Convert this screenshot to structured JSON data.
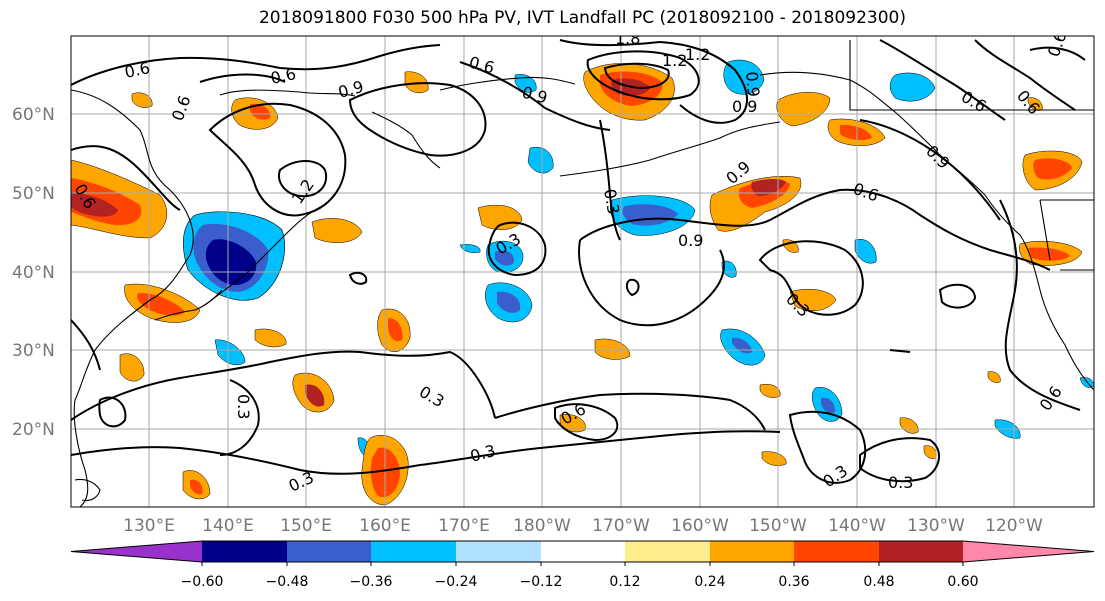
{
  "title": "2018091800 F030 500 hPa PV, IVT Landfall PC (2018092100 - 2018092300)",
  "lat_labels": [
    "60°N",
    "50°N",
    "40°N",
    "30°N",
    "20°N"
  ],
  "lon_labels": [
    "130°E",
    "140°E",
    "150°E",
    "160°E",
    "170°E",
    "180°W",
    "170°W",
    "160°W",
    "150°W",
    "140°W",
    "130°W",
    "120°W"
  ],
  "colorbar": {
    "colors": [
      "#9932cc",
      "#00008b",
      "#3a5fcd",
      "#00bfff",
      "#b0e2ff",
      "#ffffff",
      "#ffec8b",
      "#ffa500",
      "#ff4500",
      "#b22222",
      "#ff88aa"
    ],
    "tick_labels": [
      "−0.60",
      "−0.48",
      "−0.36",
      "−0.24",
      "−0.12",
      "0.12",
      "0.24",
      "0.36",
      "0.48",
      "0.60"
    ]
  },
  "contour_labels": [
    "0.6",
    "0.6",
    "0.6",
    "0.9",
    "0.9",
    "0.6",
    "1.8",
    "1.2",
    "0.9",
    "0.6",
    "0.6",
    "0.6",
    "0.9",
    "0.9",
    "0.6",
    "1.2",
    "0.3",
    "0.3",
    "0.9",
    "0.3",
    "0.3",
    "0.3",
    "0.6",
    "0.3",
    "0.3",
    "0.3",
    "0.6",
    "0.3",
    "0.6",
    "0.9",
    "1.2"
  ],
  "colors": {
    "contour": "#000000",
    "grid": "#a9a9a9",
    "coast": "#000000",
    "axis_label": "#777777"
  }
}
